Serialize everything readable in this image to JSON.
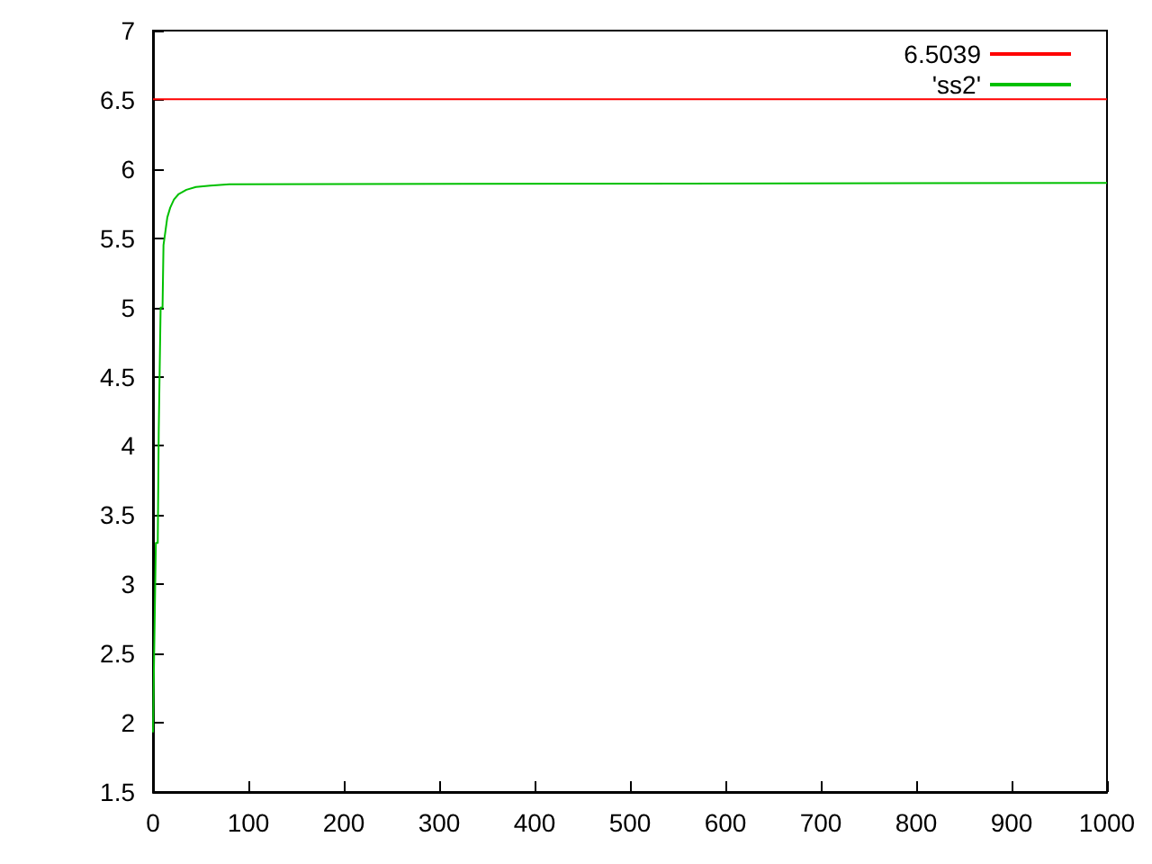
{
  "chart_data": {
    "type": "line",
    "xlim": [
      0,
      1000
    ],
    "xticks": [
      0,
      100,
      200,
      300,
      400,
      500,
      600,
      700,
      800,
      900,
      1000
    ],
    "ylim": [
      1.5,
      7
    ],
    "yticks": [
      1.5,
      2,
      2.5,
      3,
      3.5,
      4,
      4.5,
      5,
      5.5,
      6,
      6.5,
      7
    ],
    "grid": false,
    "legend": "top right",
    "marker": "none",
    "line_style": "solid",
    "series": [
      {
        "name": "6.5039",
        "color": "#ff0000",
        "x": [
          0,
          1000
        ],
        "values": [
          6.5039,
          6.5039
        ]
      },
      {
        "name": "'ss2'",
        "color": "#00c000",
        "x": [
          0,
          1,
          2,
          3,
          5,
          6,
          7,
          8,
          10,
          11,
          13,
          15,
          18,
          22,
          27,
          35,
          45,
          60,
          80,
          1000
        ],
        "values": [
          1.93,
          2.4,
          2.4,
          3.3,
          3.3,
          4.1,
          4.1,
          5.0,
          5.0,
          5.45,
          5.55,
          5.65,
          5.72,
          5.78,
          5.82,
          5.85,
          5.87,
          5.88,
          5.89,
          5.9
        ]
      }
    ]
  }
}
